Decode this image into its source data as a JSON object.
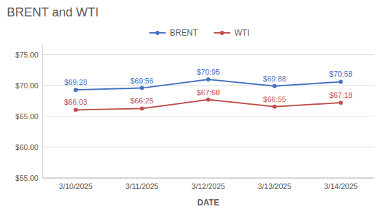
{
  "chart_data": {
    "type": "line",
    "title": "BRENT and WTI",
    "x_label": "DATE",
    "categories": [
      "3/10/2025",
      "3/11/2025",
      "3/12/2025",
      "3/13/2025",
      "3/14/2025"
    ],
    "series": [
      {
        "name": "BRENT",
        "color": "#4472C4",
        "marker": "circle",
        "values": [
          69.28,
          69.56,
          70.95,
          69.88,
          70.58
        ],
        "value_labels": [
          "$69:28",
          "$69:56",
          "$70:95",
          "$69:88",
          "$70:58"
        ]
      },
      {
        "name": "WTI",
        "color": "#C0504D",
        "marker": "circle",
        "values": [
          66.03,
          66.25,
          67.68,
          66.55,
          67.18
        ],
        "value_labels": [
          "$66:03",
          "$66:25",
          "$67:68",
          "$66:55",
          "$67:18"
        ]
      }
    ],
    "ylim": [
      55,
      76.5
    ],
    "yticks": [
      {
        "value": 55.0,
        "label": "$55.00"
      },
      {
        "value": 60.0,
        "label": "$60.00"
      },
      {
        "value": 65.0,
        "label": "$65.00"
      },
      {
        "value": 70.0,
        "label": "$70.00"
      },
      {
        "value": 75.0,
        "label": "$75.00"
      }
    ],
    "grid": true,
    "legend": "top",
    "data_labels": true
  }
}
